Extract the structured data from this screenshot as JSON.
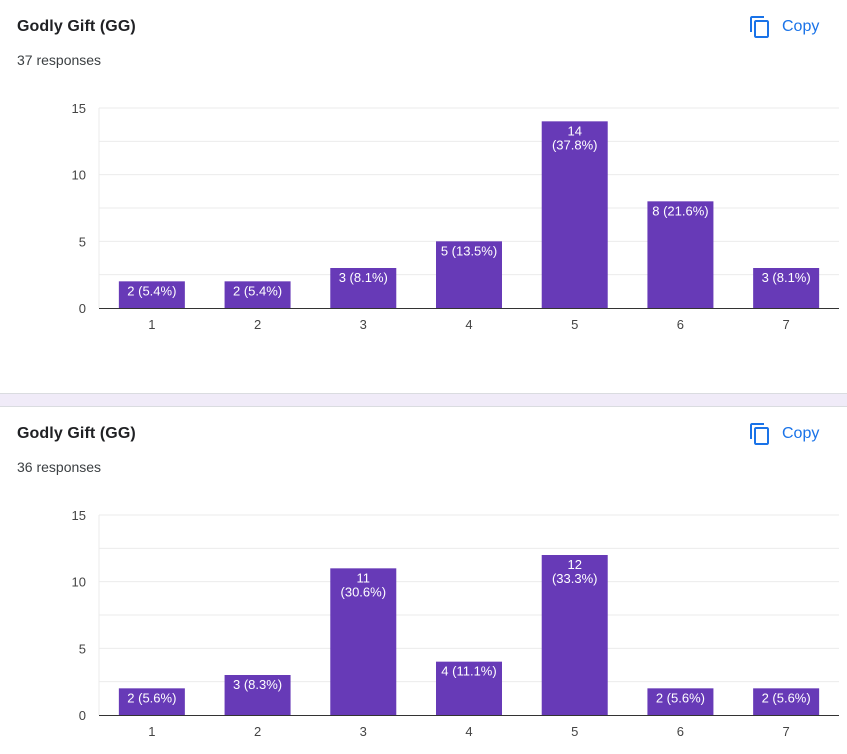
{
  "ui": {
    "copy_label": "Copy",
    "colors": {
      "accent": "#1a73e8",
      "bar": "#673ab7",
      "separator": "#f0ebf8"
    }
  },
  "chart_data": [
    {
      "type": "bar",
      "title": "Godly Gift (GG)",
      "subtitle": "37 responses",
      "categories": [
        "1",
        "2",
        "3",
        "4",
        "5",
        "6",
        "7"
      ],
      "values": [
        2,
        2,
        3,
        5,
        14,
        8,
        3
      ],
      "value_labels": [
        "2 (5.4%)",
        "2 (5.4%)",
        "3 (8.1%)",
        "5 (13.5%)",
        "14\n(37.8%)",
        "8 (21.6%)",
        "3 (8.1%)"
      ],
      "yticks": [
        0,
        5,
        10,
        15
      ],
      "ylim": [
        0,
        15
      ],
      "grid": true,
      "xlabel": "",
      "ylabel": ""
    },
    {
      "type": "bar",
      "title": "Godly Gift (GG)",
      "subtitle": "36 responses",
      "categories": [
        "1",
        "2",
        "3",
        "4",
        "5",
        "6",
        "7"
      ],
      "values": [
        2,
        3,
        11,
        4,
        12,
        2,
        2
      ],
      "value_labels": [
        "2 (5.6%)",
        "3 (8.3%)",
        "11\n(30.6%)",
        "4 (11.1%)",
        "12\n(33.3%)",
        "2 (5.6%)",
        "2 (5.6%)"
      ],
      "yticks": [
        0,
        5,
        10,
        15
      ],
      "ylim": [
        0,
        15
      ],
      "grid": true,
      "xlabel": "",
      "ylabel": ""
    }
  ]
}
